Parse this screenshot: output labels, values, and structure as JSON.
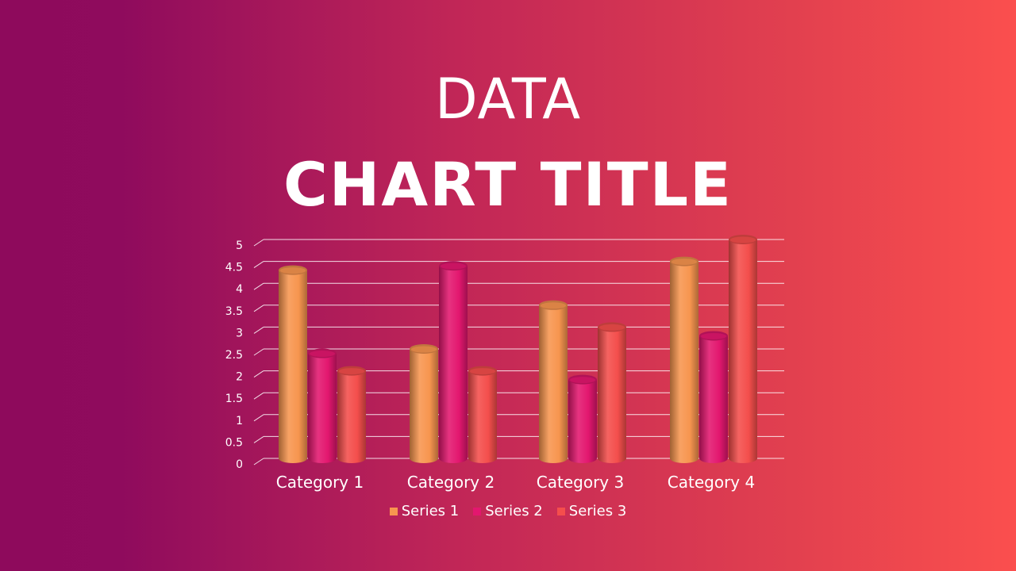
{
  "header": {
    "line1": "DATA",
    "line2": "CHART TITLE"
  },
  "chart_data": {
    "type": "bar",
    "categories": [
      "Category 1",
      "Category 2",
      "Category 3",
      "Category 4"
    ],
    "series": [
      {
        "name": "Series 1",
        "values": [
          4.3,
          2.5,
          3.5,
          4.5
        ],
        "color": "#f7954f"
      },
      {
        "name": "Series 2",
        "values": [
          2.4,
          4.4,
          1.8,
          2.8
        ],
        "color": "#e3176f"
      },
      {
        "name": "Series 3",
        "values": [
          2.0,
          2.0,
          3.0,
          5.0
        ],
        "color": "#f44e4c"
      }
    ],
    "ylim": [
      0,
      5
    ],
    "yticks": [
      "0",
      "0.5",
      "1",
      "1.5",
      "2",
      "2.5",
      "3",
      "3.5",
      "4",
      "4.5",
      "5"
    ],
    "grid": true,
    "legend": "bottom",
    "style": "3d-cylinder"
  }
}
